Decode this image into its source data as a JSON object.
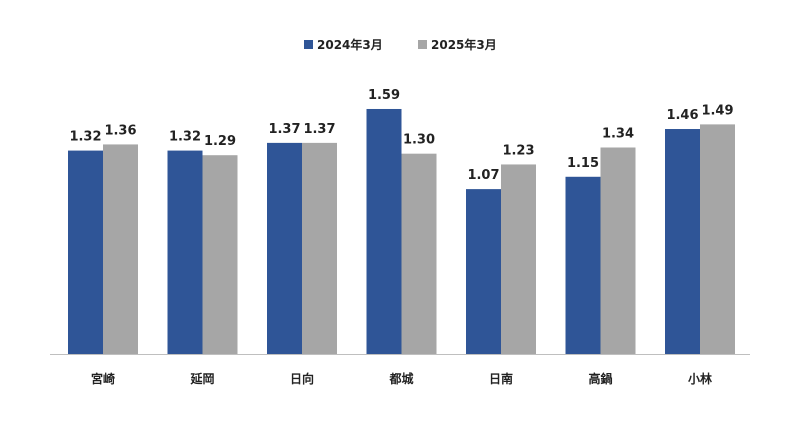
{
  "chart_data": {
    "type": "bar",
    "categories": [
      "宮崎",
      "延岡",
      "日向",
      "都城",
      "日南",
      "高鍋",
      "小林"
    ],
    "series": [
      {
        "name": "2024年3月",
        "color": "#2f5597",
        "values": [
          1.32,
          1.32,
          1.37,
          1.59,
          1.07,
          1.15,
          1.46
        ],
        "labels": [
          "1.32",
          "1.32",
          "1.37",
          "1.59",
          "1.07",
          "1.15",
          "1.46"
        ]
      },
      {
        "name": "2025年3月",
        "color": "#a6a6a6",
        "values": [
          1.36,
          1.29,
          1.37,
          1.3,
          1.23,
          1.34,
          1.49
        ],
        "labels": [
          "1.36",
          "1.29",
          "1.37",
          "1.30",
          "1.23",
          "1.34",
          "1.49"
        ]
      }
    ],
    "title": "",
    "xlabel": "",
    "ylabel": "",
    "ylim": [
      0,
      1.59
    ],
    "grid": false,
    "legend": "top-center",
    "axis_color": "#bfbfbf"
  }
}
